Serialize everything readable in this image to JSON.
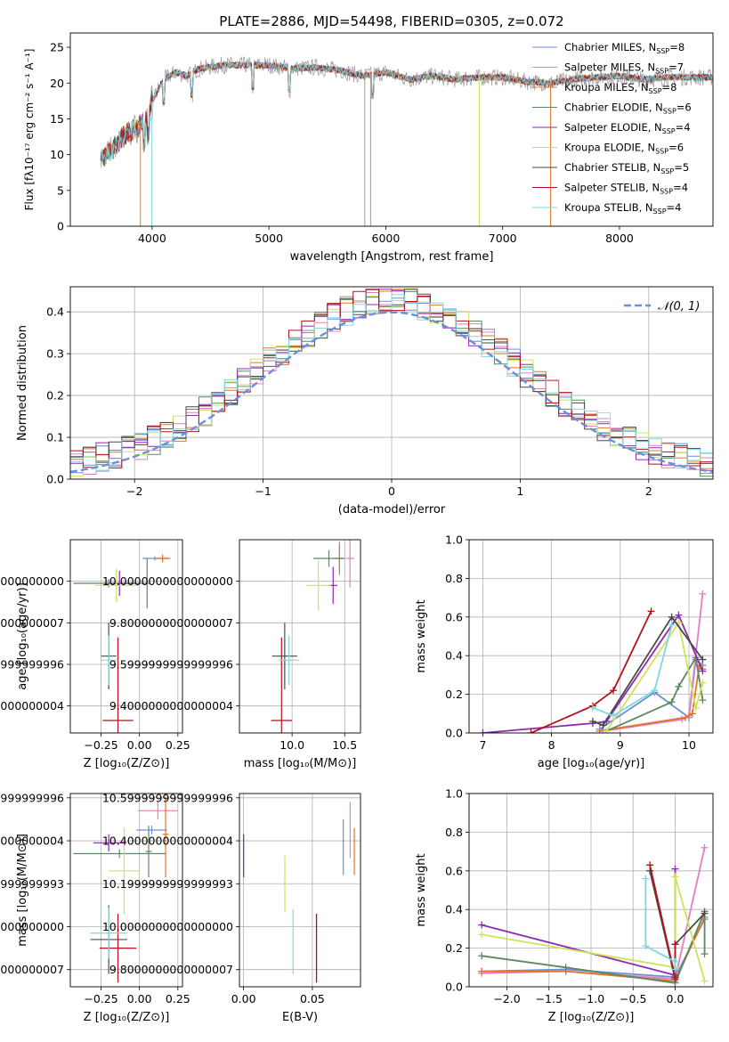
{
  "colors": {
    "chabrier_miles": "#6a8fdc",
    "salpeter_miles": "#e37fbf",
    "kroupa_miles": "#e3762a",
    "chabrier_elodie": "#5c8a60",
    "salpeter_elodie": "#9227b0",
    "kroupa_elodie": "#cfe35a",
    "chabrier_stelib": "#4a4a4a",
    "salpeter_stelib": "#b5121b",
    "kroupa_stelib": "#7fd8dd",
    "normal": "#6a8fdc",
    "raw_spectrum": "#999999"
  },
  "chart_data": [
    {
      "id": "spectrum",
      "type": "line",
      "title": "PLATE=2886, MJD=54498, FIBERID=0305, z=0.072",
      "xlabel": "wavelength [Angstrom, rest frame]",
      "ylabel": "Flux [fλ10⁻¹⁷ erg cm⁻² s⁻¹ A⁻¹]",
      "xlim": [
        3300,
        8800
      ],
      "ylim": [
        0,
        27
      ],
      "xticks": [
        4000,
        5000,
        6000,
        7000,
        8000
      ],
      "yticks": [
        0,
        5,
        10,
        15,
        20,
        25
      ],
      "grid": false,
      "legend_loc": "upper right",
      "legend": [
        {
          "label": "Chabrier MILES, N",
          "sub": "SSP",
          "suffix": "=8",
          "color_key": "chabrier_miles"
        },
        {
          "label": "Salpeter MILES, N",
          "sub": "SSP",
          "suffix": "=7",
          "color_key": "salpeter_miles"
        },
        {
          "label": "Kroupa MILES, N",
          "sub": "SSP",
          "suffix": "=8",
          "color_key": "kroupa_miles"
        },
        {
          "label": "Chabrier ELODIE, N",
          "sub": "SSP",
          "suffix": "=6",
          "color_key": "chabrier_elodie"
        },
        {
          "label": "Salpeter ELODIE, N",
          "sub": "SSP",
          "suffix": "=4",
          "color_key": "salpeter_elodie"
        },
        {
          "label": "Kroupa ELODIE, N",
          "sub": "SSP",
          "suffix": "=6",
          "color_key": "kroupa_elodie"
        },
        {
          "label": "Chabrier STELIB, N",
          "sub": "SSP",
          "suffix": "=5",
          "color_key": "chabrier_stelib"
        },
        {
          "label": "Salpeter STELIB, N",
          "sub": "SSP",
          "suffix": "=4",
          "color_key": "salpeter_stelib"
        },
        {
          "label": "Kroupa STELIB, N",
          "sub": "SSP",
          "suffix": "=4",
          "color_key": "kroupa_stelib"
        }
      ],
      "continuum": {
        "x": [
          3560,
          3650,
          3750,
          3850,
          3950,
          4000,
          4100,
          4200,
          4300,
          4400,
          4600,
          4800,
          5000,
          5200,
          5400,
          5600,
          5800,
          6000,
          6200,
          6400,
          6600,
          6800,
          7000,
          7200,
          7400,
          7600,
          7800,
          8000,
          8200,
          8400,
          8600,
          8800
        ],
        "y": [
          9.5,
          10.5,
          12.5,
          13.5,
          15.0,
          17.5,
          20.5,
          21.5,
          21.0,
          22.0,
          22.5,
          22.5,
          22.5,
          22.0,
          22.2,
          21.8,
          21.0,
          21.5,
          20.5,
          21.0,
          20.5,
          20.8,
          20.8,
          20.2,
          20.0,
          20.5,
          20.8,
          21.0,
          20.5,
          20.8,
          20.8,
          20.8
        ]
      },
      "spikes_to_zero": [
        {
          "x": 3900,
          "color_key": "kroupa_miles"
        },
        {
          "x": 3998,
          "color_key": "kroupa_stelib"
        },
        {
          "x": 5820,
          "color_key": "raw_spectrum"
        },
        {
          "x": 5870,
          "color_key": "raw_spectrum"
        },
        {
          "x": 6800,
          "color_key": "kroupa_elodie"
        },
        {
          "x": 7410,
          "color_key": "kroupa_miles"
        }
      ]
    },
    {
      "id": "residuals",
      "type": "bar",
      "xlabel": "(data-model)/error",
      "ylabel": "Normed distribution",
      "xlim": [
        -2.5,
        2.5
      ],
      "ylim": [
        0,
        0.46
      ],
      "xticks": [
        -2,
        -1,
        0,
        1,
        2
      ],
      "yticks": [
        0.0,
        0.1,
        0.2,
        0.3,
        0.4
      ],
      "grid": true,
      "bin_width": 0.1,
      "legend_label": "𝒩(0, 1)",
      "series_color_keys": [
        "chabrier_miles",
        "salpeter_miles",
        "kroupa_miles",
        "chabrier_elodie",
        "salpeter_elodie",
        "kroupa_elodie",
        "chabrier_stelib",
        "salpeter_stelib",
        "kroupa_stelib"
      ]
    },
    {
      "id": "age_vs_Z",
      "type": "scatter",
      "xlabel": "Z [log₁₀(Z/Z⊙)]",
      "ylabel": "age  [log₁₀(age/yr)]",
      "xlim": [
        -0.45,
        0.28
      ],
      "ylim": [
        9.27,
        10.2
      ],
      "xticks": [
        -0.25,
        0.0,
        0.25
      ],
      "yticks": [
        9.4,
        9.6,
        9.8,
        10.0
      ],
      "grid": true,
      "points": [
        {
          "color_key": "chabrier_miles",
          "x": 0.1,
          "xe": 0.08,
          "y": 10.11,
          "ye": 0.01
        },
        {
          "color_key": "salpeter_miles",
          "x": 0.15,
          "xe": 0.05,
          "y": 10.11,
          "ye": 0.02
        },
        {
          "color_key": "kroupa_miles",
          "x": 0.15,
          "xe": 0.05,
          "y": 10.11,
          "ye": 0.015
        },
        {
          "color_key": "chabrier_elodie",
          "x": -0.2,
          "xe": 0.23,
          "y": 9.99,
          "ye": 0.02
        },
        {
          "color_key": "salpeter_elodie",
          "x": -0.13,
          "xe": 0.1,
          "y": 9.99,
          "ye": 0.06
        },
        {
          "color_key": "kroupa_elodie",
          "x": -0.15,
          "xe": 0.14,
          "y": 9.98,
          "ye": 0.08
        },
        {
          "color_key": "chabrier_stelib",
          "x": -0.2,
          "xe": 0.05,
          "y": 9.64,
          "ye": 0.16
        },
        {
          "color_key": "salpeter_stelib",
          "x": -0.14,
          "xe": 0.1,
          "y": 9.33,
          "ye": 0.4
        },
        {
          "color_key": "kroupa_stelib",
          "x": -0.2,
          "xe": 0.05,
          "y": 9.62,
          "ye": 0.12
        },
        {
          "color_key": "chabrier_elodie",
          "x": 0.05,
          "xe": 0.02,
          "y": 9.99,
          "ye": 0.12
        }
      ]
    },
    {
      "id": "age_vs_mass",
      "type": "scatter",
      "xlabel": "mass [log₁₀(M/M⊙)]",
      "ylabel": "",
      "xlim": [
        9.5,
        10.65
      ],
      "ylim": [
        9.27,
        10.2
      ],
      "xticks": [
        10.0,
        10.5
      ],
      "yticks": [
        9.4,
        9.6,
        9.8,
        10.0
      ],
      "grid": true,
      "points": [
        {
          "color_key": "chabrier_miles",
          "x": 10.45,
          "xe": 0.05,
          "y": 10.11,
          "ye": 0.06
        },
        {
          "color_key": "salpeter_miles",
          "x": 10.55,
          "xe": 0.04,
          "y": 10.11,
          "ye": 0.14
        },
        {
          "color_key": "kroupa_miles",
          "x": 10.45,
          "xe": 0.04,
          "y": 10.11,
          "ye": 0.08
        },
        {
          "color_key": "chabrier_elodie",
          "x": 10.35,
          "xe": 0.15,
          "y": 10.11,
          "ye": 0.04
        },
        {
          "color_key": "salpeter_elodie",
          "x": 10.39,
          "xe": 0.04,
          "y": 9.98,
          "ye": 0.09
        },
        {
          "color_key": "kroupa_elodie",
          "x": 10.25,
          "xe": 0.12,
          "y": 9.98,
          "ye": 0.12
        },
        {
          "color_key": "chabrier_stelib",
          "x": 9.93,
          "xe": 0.12,
          "y": 9.64,
          "ye": 0.16
        },
        {
          "color_key": "salpeter_stelib",
          "x": 9.9,
          "xe": 0.1,
          "y": 9.33,
          "ye": 0.4
        },
        {
          "color_key": "kroupa_stelib",
          "x": 9.97,
          "xe": 0.1,
          "y": 9.62,
          "ye": 0.12
        }
      ]
    },
    {
      "id": "weight_vs_age",
      "type": "line",
      "xlabel": "age  [log₁₀(age/yr)]",
      "ylabel": "mass weight",
      "xlim": [
        6.8,
        10.35
      ],
      "ylim": [
        0,
        1
      ],
      "xticks": [
        7,
        8,
        9,
        10
      ],
      "yticks": [
        0.0,
        0.2,
        0.4,
        0.6,
        0.8,
        1.0
      ],
      "grid": true,
      "series": [
        {
          "color_key": "chabrier_miles",
          "x": [
            8.7,
            9.5,
            10.0,
            10.1,
            10.2
          ],
          "y": [
            0.02,
            0.21,
            0.08,
            0.38,
            0.35
          ]
        },
        {
          "color_key": "salpeter_miles",
          "x": [
            8.75,
            9.9,
            10.0,
            10.2
          ],
          "y": [
            0.01,
            0.07,
            0.09,
            0.72
          ]
        },
        {
          "color_key": "kroupa_miles",
          "x": [
            8.7,
            9.95,
            10.05,
            10.15,
            10.2
          ],
          "y": [
            0.01,
            0.08,
            0.1,
            0.35,
            0.33
          ]
        },
        {
          "color_key": "chabrier_elodie",
          "x": [
            8.8,
            9.75,
            9.85,
            10.1,
            10.2
          ],
          "y": [
            0.01,
            0.16,
            0.24,
            0.39,
            0.17
          ]
        },
        {
          "color_key": "salpeter_elodie",
          "x": [
            7.0,
            8.6,
            8.8,
            9.85,
            10.2
          ],
          "y": [
            0.0,
            0.05,
            0.06,
            0.61,
            0.32
          ]
        },
        {
          "color_key": "kroupa_elodie",
          "x": [
            8.8,
            9.85,
            10.1,
            10.2
          ],
          "y": [
            0.01,
            0.57,
            0.13,
            0.26
          ]
        },
        {
          "color_key": "chabrier_stelib",
          "x": [
            8.6,
            8.75,
            9.75,
            10.2
          ],
          "y": [
            0.06,
            0.04,
            0.6,
            0.38
          ]
        },
        {
          "color_key": "salpeter_stelib",
          "x": [
            7.7,
            8.6,
            8.9,
            9.45
          ],
          "y": [
            0.0,
            0.14,
            0.22,
            0.63
          ]
        },
        {
          "color_key": "kroupa_stelib",
          "x": [
            8.6,
            8.9,
            9.5,
            9.75
          ],
          "y": [
            0.13,
            0.09,
            0.22,
            0.56
          ]
        }
      ]
    },
    {
      "id": "mass_vs_Z",
      "type": "scatter",
      "xlabel": "Z [log₁₀(Z/Z⊙)]",
      "ylabel": "mass [log₁₀(M/M⊙)]",
      "xlim": [
        -0.45,
        0.28
      ],
      "ylim": [
        9.72,
        10.62
      ],
      "xticks": [
        -0.25,
        0.0,
        0.25
      ],
      "yticks": [
        9.8,
        10.0,
        10.2,
        10.4,
        10.6
      ],
      "grid": true,
      "points": [
        {
          "color_key": "chabrier_miles",
          "x": 0.08,
          "xe": 0.1,
          "y": 10.45,
          "ye": 0.02
        },
        {
          "color_key": "salpeter_miles",
          "x": 0.12,
          "xe": 0.13,
          "y": 10.54,
          "ye": 0.04
        },
        {
          "color_key": "kroupa_miles",
          "x": 0.17,
          "xe": 0.02,
          "y": 10.43,
          "ye": 0.2
        },
        {
          "color_key": "chabrier_elodie",
          "x": -0.13,
          "xe": 0.3,
          "y": 10.34,
          "ye": 0.02
        },
        {
          "color_key": "salpeter_elodie",
          "x": -0.2,
          "xe": 0.1,
          "y": 10.39,
          "ye": 0.04
        },
        {
          "color_key": "kroupa_elodie",
          "x": -0.1,
          "xe": 0.1,
          "y": 10.26,
          "ye": 0.2
        },
        {
          "color_key": "chabrier_stelib",
          "x": -0.2,
          "xe": 0.12,
          "y": 9.94,
          "ye": 0.16
        },
        {
          "color_key": "salpeter_stelib",
          "x": -0.14,
          "xe": 0.12,
          "y": 9.9,
          "ye": 0.16
        },
        {
          "color_key": "kroupa_stelib",
          "x": -0.2,
          "xe": 0.12,
          "y": 9.97,
          "ye": 0.12
        },
        {
          "color_key": "chabrier_elodie",
          "x": 0.06,
          "xe": 0.02,
          "y": 10.35,
          "ye": 0.12
        }
      ]
    },
    {
      "id": "mass_vs_ebv",
      "type": "scatter",
      "xlabel": "E(B-V)",
      "ylabel": "",
      "xlim": [
        -0.003,
        0.085
      ],
      "ylim": [
        9.72,
        10.62
      ],
      "xticks": [
        0.0,
        0.05
      ],
      "yticks": [
        9.8,
        10.0,
        10.2,
        10.4,
        10.6
      ],
      "grid": true,
      "points": [
        {
          "color_key": "chabrier_miles",
          "x": 0.0725,
          "y": 10.37,
          "ye": 0.13
        },
        {
          "color_key": "salpeter_miles",
          "x": 0.0775,
          "y": 10.45,
          "ye": 0.13
        },
        {
          "color_key": "kroupa_miles",
          "x": 0.0805,
          "y": 10.35,
          "ye": 0.11
        },
        {
          "color_key": "chabrier_elodie",
          "x": 0.0,
          "y": 10.33,
          "ye": 0.1
        },
        {
          "color_key": "salpeter_elodie",
          "x": 0.0,
          "y": 10.33,
          "ye": 0.1
        },
        {
          "color_key": "kroupa_elodie",
          "x": 0.03,
          "y": 10.2,
          "ye": 0.13
        },
        {
          "color_key": "chabrier_stelib",
          "x": 0.053,
          "y": 9.9,
          "ye": 0.16
        },
        {
          "color_key": "salpeter_stelib",
          "x": 0.053,
          "y": 9.9,
          "ye": 0.16
        },
        {
          "color_key": "kroupa_stelib",
          "x": 0.036,
          "y": 9.93,
          "ye": 0.15
        }
      ]
    },
    {
      "id": "weight_vs_Z",
      "type": "line",
      "xlabel": "Z [log₁₀(Z/Z⊙)]",
      "ylabel": "mass weight",
      "xlim": [
        -2.45,
        0.45
      ],
      "ylim": [
        0,
        1
      ],
      "xticks": [
        -2.0,
        -1.5,
        -1.0,
        -0.5,
        0.0
      ],
      "yticks": [
        0.0,
        0.2,
        0.4,
        0.6,
        0.8,
        1.0
      ],
      "grid": true,
      "series": [
        {
          "color_key": "chabrier_miles",
          "x": [
            -2.3,
            -1.3,
            0.0,
            0.35
          ],
          "y": [
            0.08,
            0.09,
            0.05,
            0.35
          ]
        },
        {
          "color_key": "salpeter_miles",
          "x": [
            -2.3,
            -1.3,
            0.0,
            0.35
          ],
          "y": [
            0.07,
            0.08,
            0.04,
            0.72
          ]
        },
        {
          "color_key": "kroupa_miles",
          "x": [
            -2.3,
            -1.3,
            0.0,
            0.35
          ],
          "y": [
            0.08,
            0.08,
            0.03,
            0.36
          ]
        },
        {
          "color_key": "chabrier_elodie",
          "x": [
            -2.3,
            -1.3,
            0.0,
            0.35,
            0.35
          ],
          "y": [
            0.16,
            0.1,
            0.02,
            0.39,
            0.17
          ]
        },
        {
          "color_key": "salpeter_elodie",
          "x": [
            -2.3,
            0.0,
            0.0
          ],
          "y": [
            0.32,
            0.06,
            0.61
          ]
        },
        {
          "color_key": "kroupa_elodie",
          "x": [
            -2.3,
            0.0,
            0.0,
            0.35
          ],
          "y": [
            0.27,
            0.1,
            0.57,
            0.03
          ]
        },
        {
          "color_key": "chabrier_stelib",
          "x": [
            -0.3,
            0.0,
            0.0,
            0.35
          ],
          "y": [
            0.6,
            0.04,
            0.22,
            0.38
          ]
        },
        {
          "color_key": "salpeter_stelib",
          "x": [
            -0.3,
            0.0,
            0.0
          ],
          "y": [
            0.63,
            0.05,
            0.22
          ]
        },
        {
          "color_key": "kroupa_stelib",
          "x": [
            -0.35,
            -0.35,
            0.0,
            0.0
          ],
          "y": [
            0.56,
            0.21,
            0.13,
            0.09
          ]
        }
      ]
    }
  ]
}
